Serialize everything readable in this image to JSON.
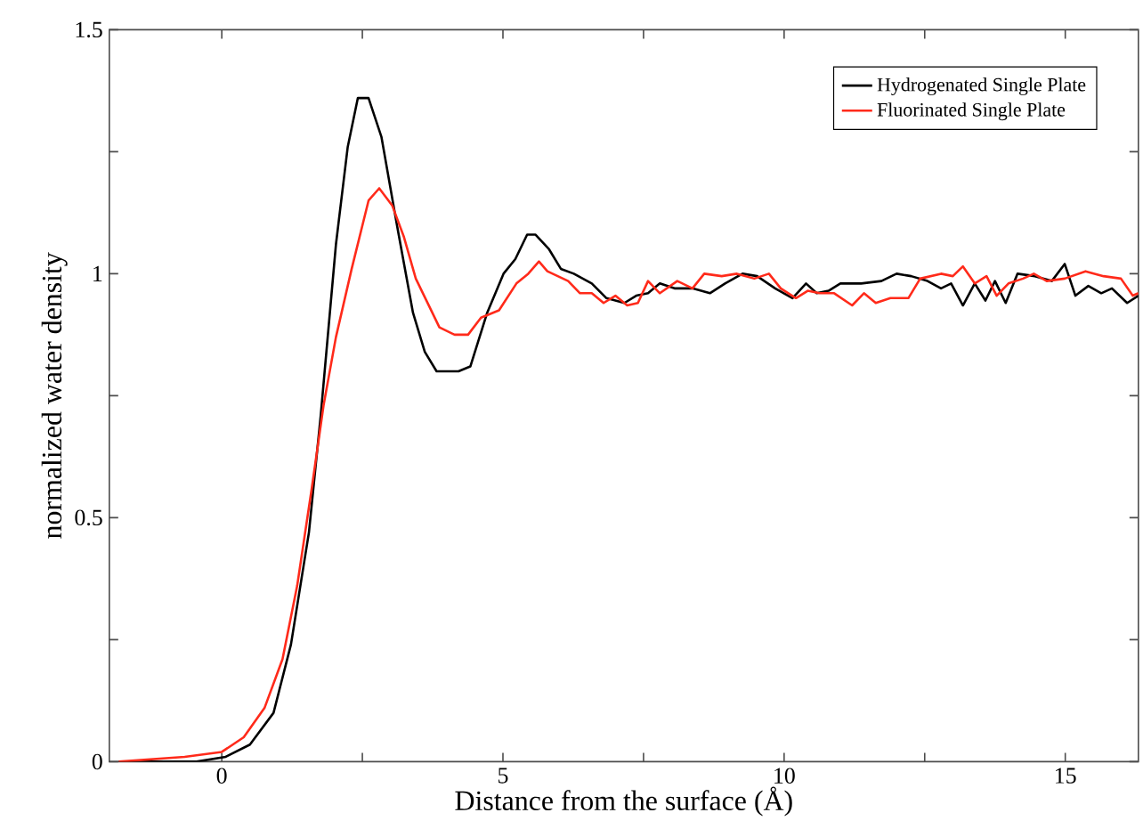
{
  "chart_data": {
    "type": "line",
    "xlabel": "Distance from the surface (Å)",
    "ylabel": "normalized water density",
    "xlim": [
      -2,
      16.3
    ],
    "ylim": [
      0,
      1.5
    ],
    "xticks": [
      0,
      {
        "value": 2.5,
        "label": null
      },
      5,
      {
        "value": 7.5,
        "label": null
      },
      10,
      {
        "value": 12.5,
        "label": null
      },
      15
    ],
    "yticks": [
      0,
      {
        "value": 0.25,
        "label": null
      },
      0.5,
      {
        "value": 0.75,
        "label": null
      },
      1,
      {
        "value": 1.25,
        "label": null
      },
      1.5
    ],
    "grid": false,
    "legend": "top right",
    "line_style": "solid",
    "series": [
      {
        "name": "Hydrogenated Single Plate",
        "color": "#000000",
        "x": [
          -1.83,
          -0.45,
          0.07,
          0.5,
          0.92,
          1.23,
          1.55,
          1.76,
          2.03,
          2.24,
          2.42,
          2.61,
          2.84,
          3.13,
          3.4,
          3.61,
          3.82,
          4.21,
          4.42,
          4.72,
          5.01,
          5.22,
          5.43,
          5.58,
          5.82,
          6.03,
          6.26,
          6.58,
          6.84,
          7.16,
          7.37,
          7.58,
          7.79,
          8.05,
          8.37,
          8.68,
          8.95,
          9.26,
          9.52,
          9.84,
          10.15,
          10.39,
          10.58,
          10.79,
          11.0,
          11.37,
          11.73,
          12.0,
          12.26,
          12.55,
          12.79,
          12.97,
          13.18,
          13.39,
          13.58,
          13.75,
          13.94,
          14.15,
          14.46,
          14.76,
          14.99,
          15.18,
          15.41,
          15.64,
          15.83,
          16.1,
          16.3
        ],
        "values": [
          0,
          0,
          0.01,
          0.035,
          0.1,
          0.24,
          0.47,
          0.71,
          1.06,
          1.26,
          1.36,
          1.36,
          1.28,
          1.09,
          0.92,
          0.84,
          0.8,
          0.8,
          0.81,
          0.92,
          1.0,
          1.03,
          1.08,
          1.08,
          1.05,
          1.01,
          1.0,
          0.98,
          0.95,
          0.94,
          0.955,
          0.96,
          0.98,
          0.97,
          0.97,
          0.96,
          0.98,
          1.0,
          0.995,
          0.97,
          0.95,
          0.98,
          0.96,
          0.965,
          0.98,
          0.98,
          0.985,
          1.0,
          0.995,
          0.985,
          0.97,
          0.98,
          0.935,
          0.98,
          0.945,
          0.985,
          0.94,
          1.0,
          0.995,
          0.985,
          1.02,
          0.955,
          0.975,
          0.96,
          0.97,
          0.94,
          0.955
        ]
      },
      {
        "name": "Fluorinated Single Plate",
        "color": "#ff2a1a",
        "x": [
          -1.83,
          -0.66,
          0,
          0.39,
          0.76,
          1.08,
          1.34,
          1.6,
          1.81,
          2.03,
          2.31,
          2.61,
          2.8,
          3.03,
          3.24,
          3.45,
          3.66,
          3.87,
          4.14,
          4.38,
          4.61,
          4.93,
          5.24,
          5.45,
          5.64,
          5.79,
          6.16,
          6.37,
          6.58,
          6.79,
          7.0,
          7.21,
          7.4,
          7.58,
          7.79,
          8.1,
          8.37,
          8.58,
          8.89,
          9.16,
          9.47,
          9.73,
          9.94,
          10.21,
          10.42,
          10.63,
          10.89,
          11.21,
          11.42,
          11.63,
          11.89,
          12.21,
          12.42,
          12.79,
          13.0,
          13.18,
          13.39,
          13.6,
          13.78,
          13.99,
          14.25,
          14.44,
          14.67,
          14.99,
          15.36,
          15.68,
          15.99,
          16.2,
          16.3
        ],
        "values": [
          0,
          0.01,
          0.02,
          0.05,
          0.11,
          0.21,
          0.36,
          0.56,
          0.73,
          0.87,
          1.01,
          1.15,
          1.175,
          1.14,
          1.075,
          0.99,
          0.94,
          0.89,
          0.875,
          0.875,
          0.91,
          0.925,
          0.98,
          1.0,
          1.025,
          1.005,
          0.985,
          0.96,
          0.96,
          0.94,
          0.955,
          0.935,
          0.94,
          0.985,
          0.96,
          0.985,
          0.97,
          1.0,
          0.995,
          1.0,
          0.99,
          1.0,
          0.97,
          0.95,
          0.965,
          0.96,
          0.96,
          0.935,
          0.96,
          0.94,
          0.95,
          0.95,
          0.99,
          1.0,
          0.995,
          1.015,
          0.98,
          0.995,
          0.955,
          0.98,
          0.99,
          1.0,
          0.985,
          0.99,
          1.005,
          0.995,
          0.99,
          0.955,
          0.96
        ]
      }
    ]
  }
}
